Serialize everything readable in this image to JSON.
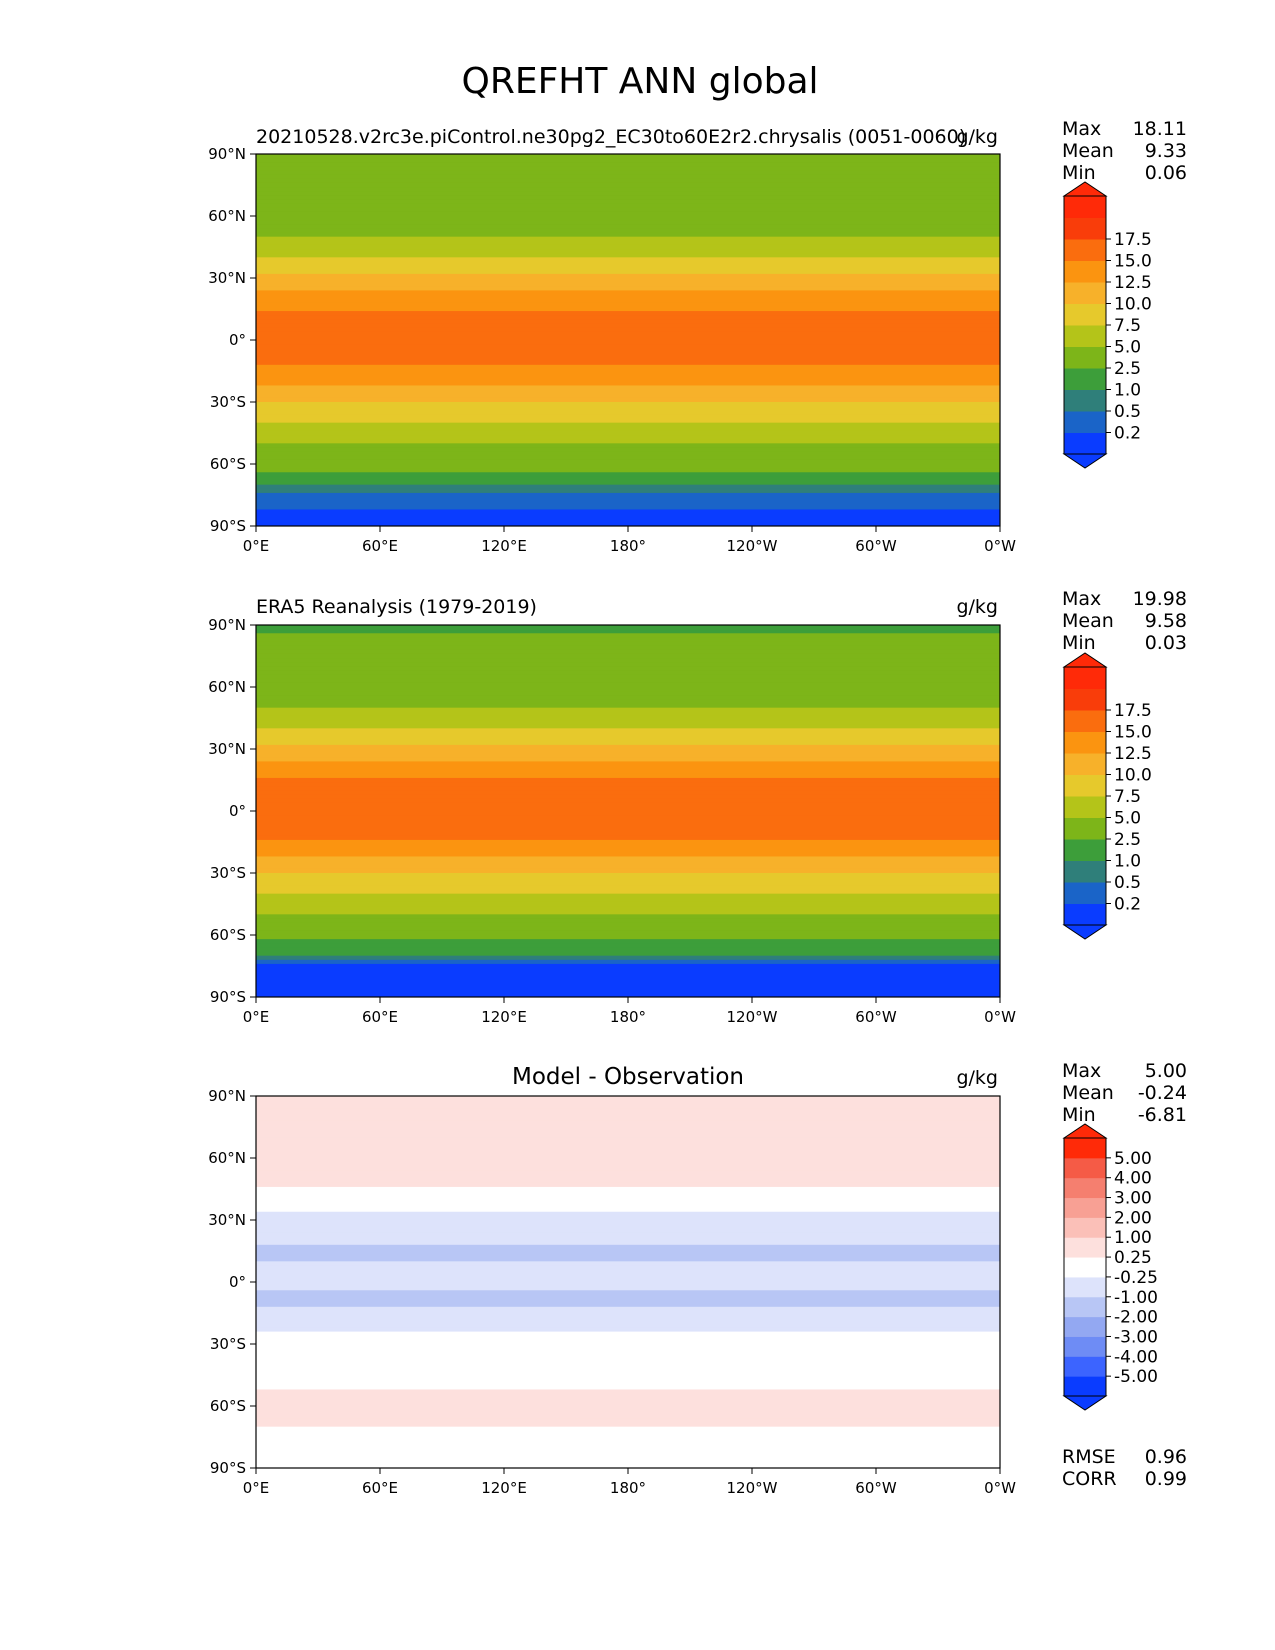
{
  "figure": {
    "title": "QREFHT ANN global"
  },
  "colors": {
    "field_levels": [
      "#0a3cff",
      "#1a64c8",
      "#2f7f7a",
      "#3d9e3a",
      "#7db519",
      "#b4c419",
      "#e6c92c",
      "#f7b12a",
      "#fb9410",
      "#fa6d0e",
      "#f93d0a",
      "#ff2a08"
    ],
    "diff_levels": [
      "#0a3cff",
      "#3c64ff",
      "#6e8cf5",
      "#93a8f2",
      "#b8c6f5",
      "#dde3fb",
      "#ffffff",
      "#fde0dd",
      "#fbc0b8",
      "#f8a094",
      "#f57f6f",
      "#f55b46",
      "#ff2a08"
    ]
  },
  "chart_data": [
    {
      "type": "heatmap",
      "title": "20210528.v2rc3e.piControl.ne30pg2_EC30to60E2r2.chrysalis (0051-0060)",
      "units": "g/kg",
      "xticks": [
        "0°E",
        "60°E",
        "120°E",
        "180°",
        "120°W",
        "60°W",
        "0°W"
      ],
      "yticks": [
        "90°N",
        "60°N",
        "30°N",
        "0°",
        "30°S",
        "60°S",
        "90°S"
      ],
      "xlim": [
        0,
        360
      ],
      "ylim": [
        -90,
        90
      ],
      "stats": [
        {
          "label": "Max",
          "value": "18.11"
        },
        {
          "label": "Mean",
          "value": "9.33"
        },
        {
          "label": "Min",
          "value": "0.06"
        }
      ],
      "colorbar": [
        "0.2",
        "0.5",
        "1.0",
        "2.5",
        "5.0",
        "7.5",
        "10.0",
        "12.5",
        "15.0",
        "17.5"
      ],
      "colorbar_extend": "both",
      "zonal_profile": [
        {
          "lat": 90,
          "value": 2.5
        },
        {
          "lat": 80,
          "value": 2.8
        },
        {
          "lat": 70,
          "value": 3.0
        },
        {
          "lat": 60,
          "value": 3.5
        },
        {
          "lat": 50,
          "value": 5.0
        },
        {
          "lat": 40,
          "value": 7.5
        },
        {
          "lat": 30,
          "value": 10.5
        },
        {
          "lat": 20,
          "value": 13.5
        },
        {
          "lat": 10,
          "value": 16.0
        },
        {
          "lat": 0,
          "value": 16.5
        },
        {
          "lat": -10,
          "value": 15.5
        },
        {
          "lat": -20,
          "value": 13.0
        },
        {
          "lat": -30,
          "value": 10.0
        },
        {
          "lat": -40,
          "value": 7.5
        },
        {
          "lat": -50,
          "value": 4.8
        },
        {
          "lat": -60,
          "value": 3.0
        },
        {
          "lat": -65,
          "value": 2.2
        },
        {
          "lat": -70,
          "value": 1.0
        },
        {
          "lat": -75,
          "value": 0.3
        },
        {
          "lat": -90,
          "value": 0.1
        }
      ]
    },
    {
      "type": "heatmap",
      "title": "ERA5 Reanalysis (1979-2019)",
      "units": "g/kg",
      "xticks": [
        "0°E",
        "60°E",
        "120°E",
        "180°",
        "120°W",
        "60°W",
        "0°W"
      ],
      "yticks": [
        "90°N",
        "60°N",
        "30°N",
        "0°",
        "30°S",
        "60°S",
        "90°S"
      ],
      "xlim": [
        0,
        360
      ],
      "ylim": [
        -90,
        90
      ],
      "stats": [
        {
          "label": "Max",
          "value": "19.98"
        },
        {
          "label": "Mean",
          "value": "9.58"
        },
        {
          "label": "Min",
          "value": "0.03"
        }
      ],
      "colorbar": [
        "0.2",
        "0.5",
        "1.0",
        "2.5",
        "5.0",
        "7.5",
        "10.0",
        "12.5",
        "15.0",
        "17.5"
      ],
      "colorbar_extend": "both",
      "zonal_profile": [
        {
          "lat": 90,
          "value": 2.4
        },
        {
          "lat": 80,
          "value": 2.6
        },
        {
          "lat": 70,
          "value": 2.8
        },
        {
          "lat": 60,
          "value": 3.3
        },
        {
          "lat": 50,
          "value": 4.9
        },
        {
          "lat": 40,
          "value": 7.4
        },
        {
          "lat": 30,
          "value": 10.6
        },
        {
          "lat": 20,
          "value": 14.0
        },
        {
          "lat": 10,
          "value": 17.0
        },
        {
          "lat": 0,
          "value": 17.5
        },
        {
          "lat": -10,
          "value": 16.0
        },
        {
          "lat": -20,
          "value": 13.2
        },
        {
          "lat": -30,
          "value": 10.0
        },
        {
          "lat": -40,
          "value": 7.5
        },
        {
          "lat": -50,
          "value": 4.8
        },
        {
          "lat": -60,
          "value": 2.8
        },
        {
          "lat": -65,
          "value": 2.0
        },
        {
          "lat": -70,
          "value": 0.8
        },
        {
          "lat": -75,
          "value": 0.2
        },
        {
          "lat": -90,
          "value": 0.05
        }
      ]
    },
    {
      "type": "heatmap",
      "title": "Model - Observation",
      "units": "g/kg",
      "xticks": [
        "0°E",
        "60°E",
        "120°E",
        "180°",
        "120°W",
        "60°W",
        "0°W"
      ],
      "yticks": [
        "90°N",
        "60°N",
        "30°N",
        "0°",
        "30°S",
        "60°S",
        "90°S"
      ],
      "xlim": [
        0,
        360
      ],
      "ylim": [
        -90,
        90
      ],
      "stats": [
        {
          "label": "Max",
          "value": "5.00"
        },
        {
          "label": "Mean",
          "value": "-0.24"
        },
        {
          "label": "Min",
          "value": "-6.81"
        }
      ],
      "colorbar": [
        "-5.00",
        "-4.00",
        "-3.00",
        "-2.00",
        "-1.00",
        "-0.25",
        "0.25",
        "1.00",
        "2.00",
        "3.00",
        "4.00",
        "5.00"
      ],
      "colorbar_extend": "both",
      "metrics": [
        {
          "label": "RMSE",
          "value": "0.96"
        },
        {
          "label": "CORR",
          "value": "0.99"
        }
      ],
      "zonal_profile": [
        {
          "lat": 90,
          "value": 0.3
        },
        {
          "lat": 70,
          "value": 0.4
        },
        {
          "lat": 55,
          "value": 0.5
        },
        {
          "lat": 40,
          "value": 0.1
        },
        {
          "lat": 25,
          "value": -0.7
        },
        {
          "lat": 12,
          "value": -1.2
        },
        {
          "lat": 3,
          "value": -0.5
        },
        {
          "lat": -8,
          "value": -1.2
        },
        {
          "lat": -20,
          "value": -0.5
        },
        {
          "lat": -30,
          "value": 0.2
        },
        {
          "lat": -45,
          "value": 0.1
        },
        {
          "lat": -55,
          "value": 0.3
        },
        {
          "lat": -65,
          "value": 0.5
        },
        {
          "lat": -72,
          "value": 0.1
        },
        {
          "lat": -90,
          "value": 0.0
        }
      ]
    }
  ]
}
